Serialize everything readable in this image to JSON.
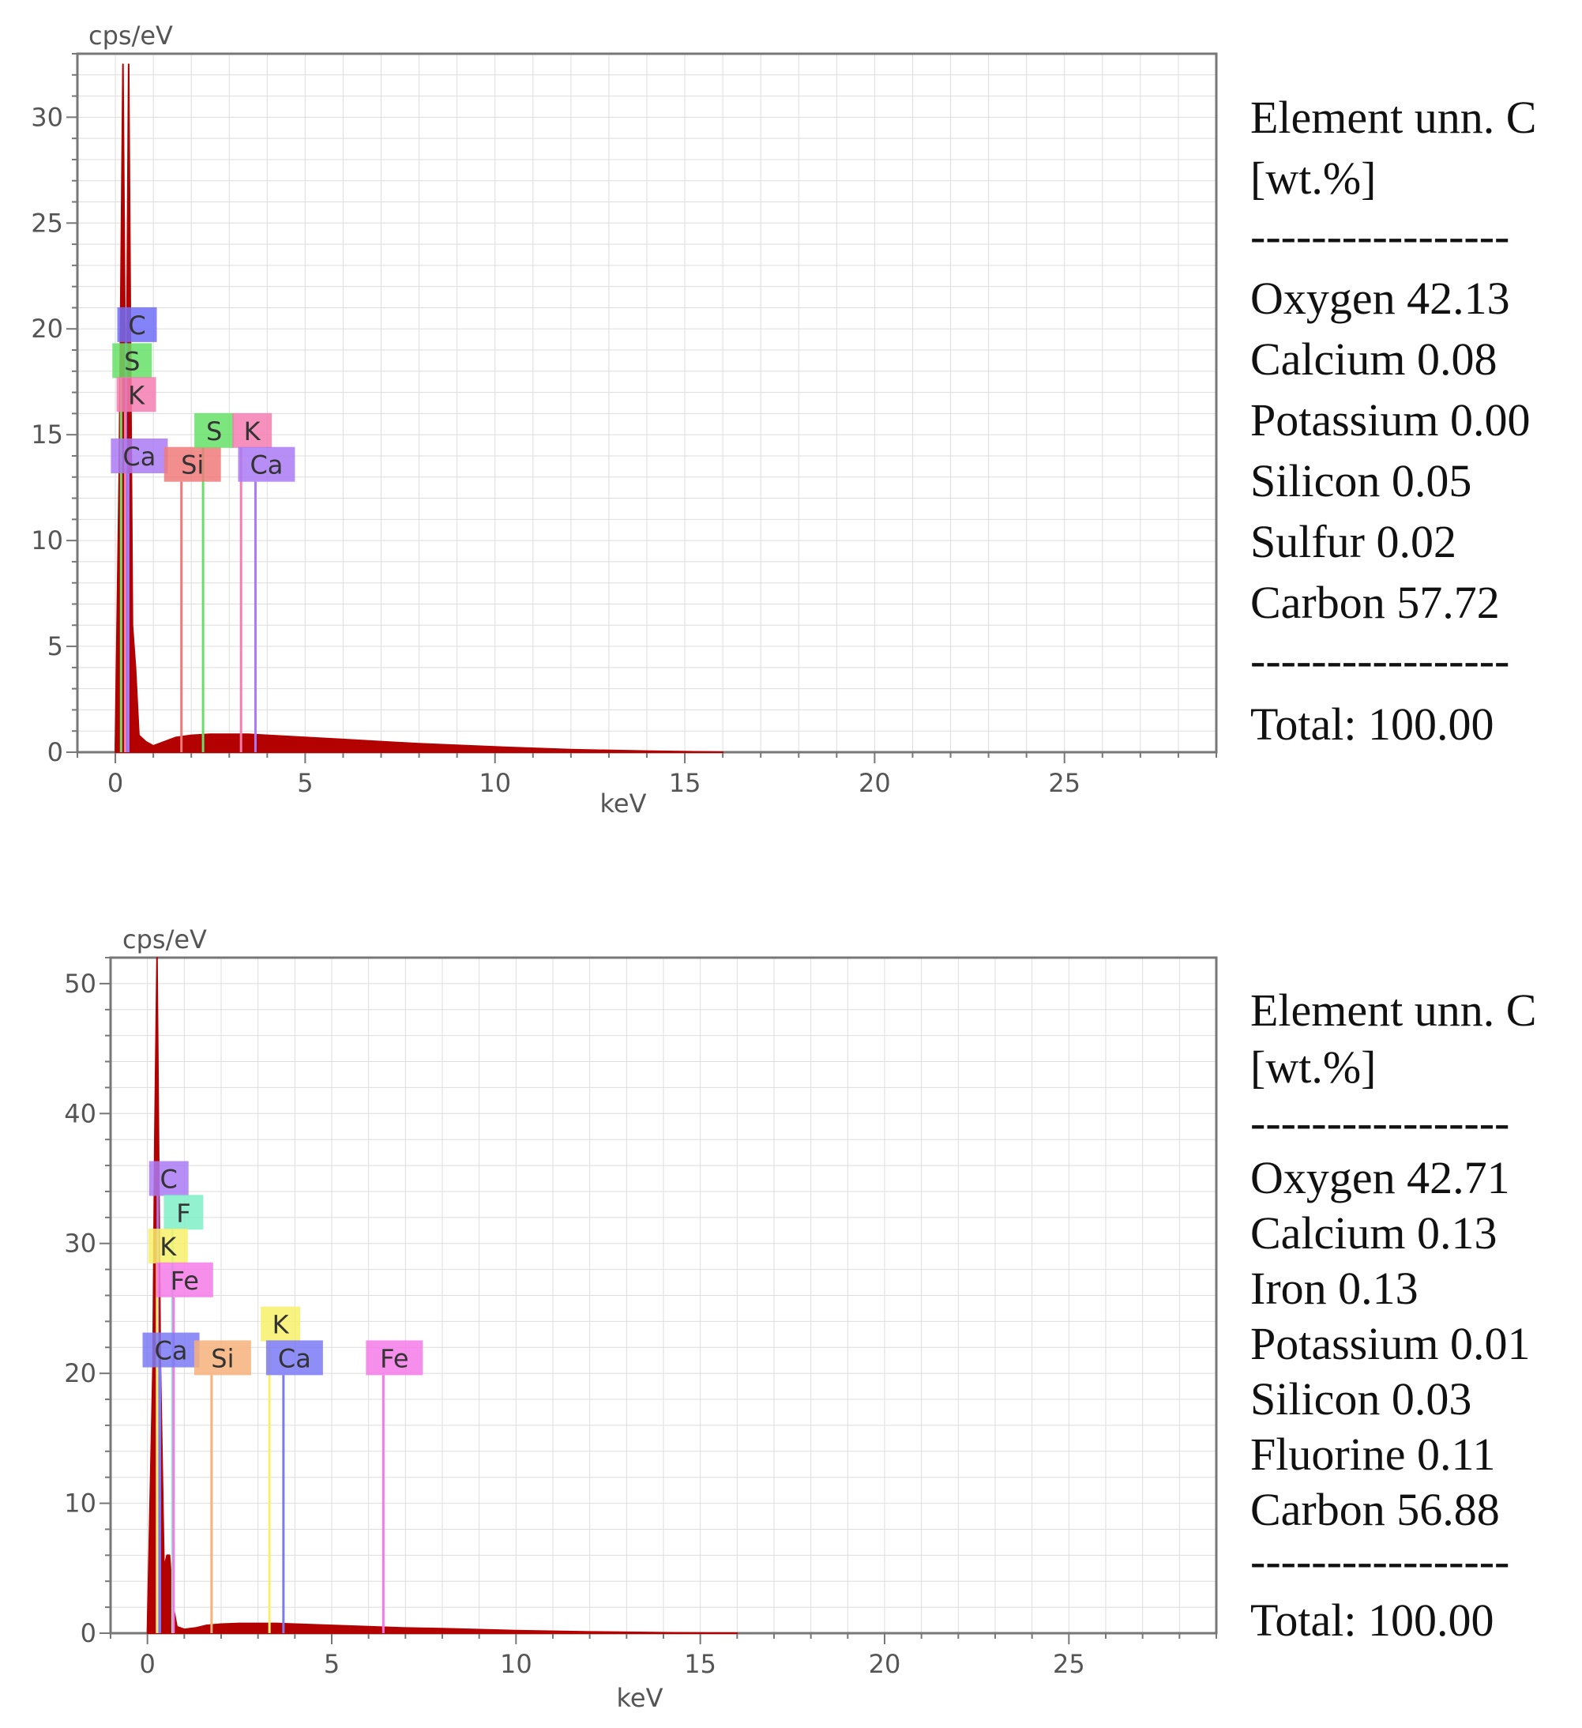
{
  "chart_data": [
    {
      "type": "line",
      "title": "",
      "ylabel": "cps/eV",
      "xlabel": "keV",
      "xlim": [
        -1,
        29
      ],
      "ylim": [
        0,
        33
      ],
      "xticks": [
        0,
        5,
        10,
        15,
        20,
        25
      ],
      "yticks": [
        0,
        5,
        10,
        15,
        20,
        25,
        30
      ],
      "grid": true,
      "spectrum": {
        "name": "spectrum",
        "color": "#b30000",
        "x": [
          0.0,
          0.1,
          0.2,
          0.28,
          0.35,
          0.45,
          0.53,
          0.62,
          0.8,
          1.0,
          1.3,
          1.6,
          2.0,
          2.5,
          3.0,
          3.5,
          4.0,
          5.0,
          6.0,
          7.0,
          8.0,
          10.0,
          12.0,
          14.0,
          16.0
        ],
        "y": [
          0.3,
          13.0,
          32.5,
          13.0,
          32.5,
          6.0,
          4.0,
          0.8,
          0.5,
          0.3,
          0.5,
          0.7,
          0.8,
          0.85,
          0.85,
          0.85,
          0.8,
          0.7,
          0.6,
          0.5,
          0.4,
          0.25,
          0.12,
          0.05,
          0.0
        ]
      },
      "peaks": [
        {
          "element": "C",
          "energy": 0.28,
          "height": 20.2,
          "color": "#6f6ff7",
          "label_x": 0.28,
          "label_y": 20.2
        },
        {
          "element": "S",
          "energy": 0.15,
          "height": 18.5,
          "color": "#66e066",
          "label_x": 0.15,
          "label_y": 18.5
        },
        {
          "element": "K",
          "energy": 0.26,
          "height": 16.9,
          "color": "#f57db0",
          "label_x": 0.26,
          "label_y": 16.9
        },
        {
          "element": "Ca",
          "energy": 0.34,
          "height": 14.0,
          "color": "#a97af5",
          "label_x": 0.34,
          "label_y": 14.0
        },
        {
          "element": "Si",
          "energy": 1.74,
          "height": 13.6,
          "color": "#f07a7a",
          "label_x": 1.74,
          "label_y": 13.6
        },
        {
          "element": "S",
          "energy": 2.31,
          "height": 15.2,
          "color": "#66e066",
          "label_x": 2.31,
          "label_y": 15.2
        },
        {
          "element": "K",
          "energy": 3.31,
          "height": 15.2,
          "color": "#f57db0",
          "label_x": 3.31,
          "label_y": 15.2
        },
        {
          "element": "Ca",
          "energy": 3.69,
          "height": 13.6,
          "color": "#a97af5",
          "label_x": 3.69,
          "label_y": 13.6
        }
      ]
    },
    {
      "type": "line",
      "title": "",
      "ylabel": "cps/eV",
      "xlabel": "keV",
      "xlim": [
        -1,
        29
      ],
      "ylim": [
        0,
        52
      ],
      "xticks": [
        0,
        5,
        10,
        15,
        20,
        25
      ],
      "yticks": [
        0,
        10,
        20,
        30,
        40,
        50
      ],
      "grid": true,
      "spectrum": {
        "name": "spectrum",
        "color": "#b30000",
        "x": [
          0.0,
          0.15,
          0.2,
          0.26,
          0.35,
          0.45,
          0.53,
          0.6,
          0.7,
          0.8,
          1.0,
          1.3,
          1.6,
          2.0,
          2.5,
          3.0,
          3.5,
          4.0,
          5.0,
          6.0,
          7.0,
          8.0,
          10.0,
          12.0,
          14.0,
          16.0
        ],
        "y": [
          0.3,
          20.5,
          38.0,
          52.0,
          21.0,
          5.0,
          6.0,
          6.0,
          2.0,
          0.5,
          0.3,
          0.4,
          0.6,
          0.7,
          0.75,
          0.75,
          0.75,
          0.7,
          0.6,
          0.5,
          0.4,
          0.35,
          0.2,
          0.1,
          0.04,
          0.0
        ]
      },
      "peaks": [
        {
          "element": "C",
          "energy": 0.28,
          "height": 35.0,
          "color": "#a97af5",
          "label_x": 0.28,
          "label_y": 35.0
        },
        {
          "element": "F",
          "energy": 0.68,
          "height": 32.4,
          "color": "#7ff0c8",
          "label_x": 0.68,
          "label_y": 32.4
        },
        {
          "element": "K",
          "energy": 0.26,
          "height": 29.8,
          "color": "#f7f06a",
          "label_x": 0.26,
          "label_y": 29.8
        },
        {
          "element": "Fe",
          "energy": 0.71,
          "height": 27.2,
          "color": "#f57ae8",
          "label_x": 0.71,
          "label_y": 27.2
        },
        {
          "element": "Ca",
          "energy": 0.34,
          "height": 21.8,
          "color": "#7a7af5",
          "label_x": 0.34,
          "label_y": 21.8
        },
        {
          "element": "Si",
          "energy": 1.74,
          "height": 21.2,
          "color": "#f7b27a",
          "label_x": 1.74,
          "label_y": 21.2
        },
        {
          "element": "K",
          "energy": 3.31,
          "height": 23.8,
          "color": "#f7f06a",
          "label_x": 3.31,
          "label_y": 23.8
        },
        {
          "element": "Ca",
          "energy": 3.69,
          "height": 21.2,
          "color": "#7a7af5",
          "label_x": 3.69,
          "label_y": 21.2
        },
        {
          "element": "Fe",
          "energy": 6.4,
          "height": 21.2,
          "color": "#f57ae8",
          "label_x": 6.4,
          "label_y": 21.2
        }
      ]
    }
  ],
  "tables": [
    {
      "header_line1": "Element unn. C",
      "header_line2": "[wt.%]",
      "separator": "-----------------",
      "rows": [
        "Oxygen 42.13",
        "Calcium 0.08",
        "Potassium 0.00",
        "Silicon  0.05",
        "Sulfur 0.02",
        "Carbon 57.72"
      ],
      "separator2": "-----------------",
      "total": "Total:  100.00"
    },
    {
      "header_line1": "Element unn. C",
      "header_line2": "[wt.%]",
      "separator": "-----------------",
      "rows": [
        "Oxygen 42.71",
        "Calcium 0.13",
        "Iron 0.13",
        "Potassium 0.01",
        "Silicon 0.03",
        "Fluorine 0.11",
        "Carbon 56.88"
      ],
      "separator2": "-----------------",
      "total": "Total: 100.00"
    }
  ]
}
